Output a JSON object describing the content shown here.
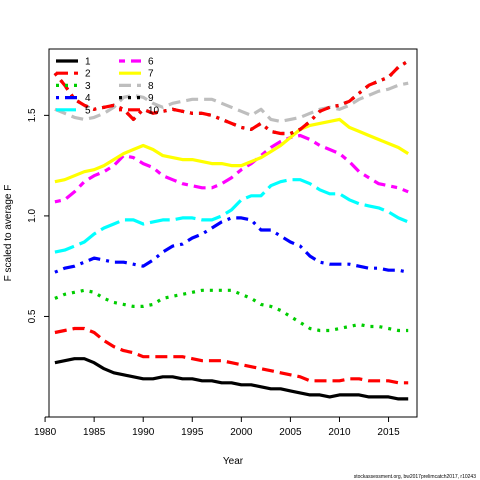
{
  "chart_data": {
    "type": "line",
    "xlabel": "Year",
    "ylabel": "F scaled to average F",
    "xlim": [
      1980.4,
      2017.9
    ],
    "ylim": [
      0.0,
      1.83
    ],
    "xticks": [
      1980,
      1985,
      1990,
      1995,
      2000,
      2005,
      2010,
      2015
    ],
    "yticks": [
      0.5,
      1.0,
      1.5
    ],
    "ytick_labels": [
      "0.5",
      "1.0",
      "1.5"
    ],
    "grid": false,
    "legend_position": "top-left",
    "credit": "stockassessment.org, bw2017prelimcatch2017, r10243",
    "x": [
      1981,
      1982,
      1983,
      1984,
      1985,
      1986,
      1987,
      1988,
      1989,
      1990,
      1991,
      1992,
      1993,
      1994,
      1995,
      1996,
      1997,
      1998,
      1999,
      2000,
      2001,
      2002,
      2003,
      2004,
      2005,
      2006,
      2007,
      2008,
      2009,
      2010,
      2011,
      2012,
      2013,
      2014,
      2015,
      2016,
      2017
    ],
    "series": [
      {
        "name": "1",
        "color": "#000000",
        "dash": "solid",
        "values": [
          0.27,
          0.28,
          0.29,
          0.29,
          0.27,
          0.24,
          0.22,
          0.21,
          0.2,
          0.19,
          0.19,
          0.2,
          0.2,
          0.19,
          0.19,
          0.18,
          0.18,
          0.17,
          0.17,
          0.16,
          0.16,
          0.15,
          0.14,
          0.14,
          0.13,
          0.12,
          0.11,
          0.11,
          0.1,
          0.11,
          0.11,
          0.11,
          0.1,
          0.1,
          0.1,
          0.09,
          0.09
        ]
      },
      {
        "name": "2",
        "color": "#FF0000",
        "dash": "dashed",
        "values": [
          0.42,
          0.43,
          0.44,
          0.44,
          0.42,
          0.38,
          0.35,
          0.33,
          0.32,
          0.3,
          0.3,
          0.3,
          0.3,
          0.3,
          0.29,
          0.28,
          0.28,
          0.28,
          0.27,
          0.26,
          0.25,
          0.24,
          0.23,
          0.22,
          0.21,
          0.2,
          0.18,
          0.18,
          0.18,
          0.18,
          0.19,
          0.19,
          0.18,
          0.18,
          0.18,
          0.17,
          0.17
        ]
      },
      {
        "name": "3",
        "color": "#00CD00",
        "dash": "dotted",
        "values": [
          0.59,
          0.61,
          0.62,
          0.63,
          0.62,
          0.59,
          0.57,
          0.56,
          0.55,
          0.55,
          0.56,
          0.59,
          0.6,
          0.61,
          0.62,
          0.63,
          0.63,
          0.63,
          0.63,
          0.61,
          0.59,
          0.56,
          0.55,
          0.53,
          0.5,
          0.47,
          0.44,
          0.43,
          0.43,
          0.44,
          0.45,
          0.46,
          0.45,
          0.45,
          0.44,
          0.43,
          0.43
        ]
      },
      {
        "name": "4",
        "color": "#0000FF",
        "dash": "dotdash",
        "values": [
          0.72,
          0.74,
          0.75,
          0.77,
          0.79,
          0.78,
          0.77,
          0.77,
          0.76,
          0.75,
          0.78,
          0.82,
          0.85,
          0.86,
          0.89,
          0.91,
          0.94,
          0.97,
          0.99,
          0.99,
          0.98,
          0.93,
          0.93,
          0.9,
          0.87,
          0.85,
          0.8,
          0.77,
          0.76,
          0.76,
          0.76,
          0.75,
          0.74,
          0.74,
          0.73,
          0.73,
          0.72
        ]
      },
      {
        "name": "5",
        "color": "#00FFFF",
        "dash": "longdash",
        "values": [
          0.82,
          0.83,
          0.85,
          0.87,
          0.91,
          0.94,
          0.96,
          0.98,
          0.98,
          0.96,
          0.97,
          0.98,
          0.98,
          0.99,
          0.99,
          0.98,
          0.98,
          1.0,
          1.03,
          1.08,
          1.1,
          1.1,
          1.15,
          1.17,
          1.18,
          1.18,
          1.16,
          1.13,
          1.11,
          1.11,
          1.08,
          1.06,
          1.05,
          1.04,
          1.02,
          0.99,
          0.97
        ]
      },
      {
        "name": "6",
        "color": "#FF00FF",
        "dash": "twodash",
        "values": [
          1.07,
          1.08,
          1.12,
          1.17,
          1.2,
          1.22,
          1.25,
          1.3,
          1.29,
          1.26,
          1.24,
          1.2,
          1.18,
          1.16,
          1.15,
          1.14,
          1.14,
          1.16,
          1.19,
          1.23,
          1.26,
          1.3,
          1.34,
          1.37,
          1.39,
          1.4,
          1.38,
          1.35,
          1.33,
          1.31,
          1.27,
          1.22,
          1.19,
          1.16,
          1.15,
          1.14,
          1.12
        ]
      },
      {
        "name": "7",
        "color": "#FFFF00",
        "dash": "solid",
        "values": [
          1.17,
          1.18,
          1.2,
          1.22,
          1.23,
          1.25,
          1.28,
          1.31,
          1.33,
          1.35,
          1.33,
          1.3,
          1.29,
          1.28,
          1.28,
          1.27,
          1.26,
          1.26,
          1.25,
          1.25,
          1.27,
          1.29,
          1.32,
          1.35,
          1.39,
          1.43,
          1.45,
          1.46,
          1.47,
          1.48,
          1.44,
          1.42,
          1.4,
          1.38,
          1.36,
          1.34,
          1.31
        ]
      },
      {
        "name": "8",
        "color": "#BEBEBE",
        "dash": "dashed",
        "values": [
          1.53,
          1.51,
          1.49,
          1.48,
          1.49,
          1.51,
          1.54,
          1.59,
          1.6,
          1.59,
          1.56,
          1.54,
          1.56,
          1.57,
          1.58,
          1.58,
          1.58,
          1.56,
          1.54,
          1.52,
          1.5,
          1.53,
          1.48,
          1.47,
          1.48,
          1.49,
          1.51,
          1.53,
          1.54,
          1.53,
          1.55,
          1.58,
          1.6,
          1.62,
          1.63,
          1.65,
          1.66
        ]
      },
      {
        "name": "9",
        "color": "#000000",
        "dash": "dotted",
        "values": [
          1.71,
          1.65,
          1.58,
          1.55,
          1.53,
          1.54,
          1.55,
          1.53,
          1.48,
          1.53,
          1.51,
          1.52,
          1.53,
          1.52,
          1.51,
          1.51,
          1.5,
          1.48,
          1.46,
          1.44,
          1.43,
          1.46,
          1.42,
          1.41,
          1.41,
          1.43,
          1.47,
          1.52,
          1.54,
          1.55,
          1.57,
          1.61,
          1.65,
          1.67,
          1.69,
          1.74,
          1.77
        ]
      },
      {
        "name": "10",
        "color": "#FF0000",
        "dash": "dotdash",
        "values": [
          1.71,
          1.65,
          1.58,
          1.55,
          1.53,
          1.54,
          1.55,
          1.53,
          1.48,
          1.53,
          1.51,
          1.52,
          1.53,
          1.52,
          1.51,
          1.51,
          1.5,
          1.48,
          1.46,
          1.44,
          1.43,
          1.46,
          1.42,
          1.41,
          1.41,
          1.43,
          1.47,
          1.52,
          1.54,
          1.55,
          1.57,
          1.61,
          1.65,
          1.67,
          1.69,
          1.74,
          1.77
        ]
      }
    ]
  }
}
